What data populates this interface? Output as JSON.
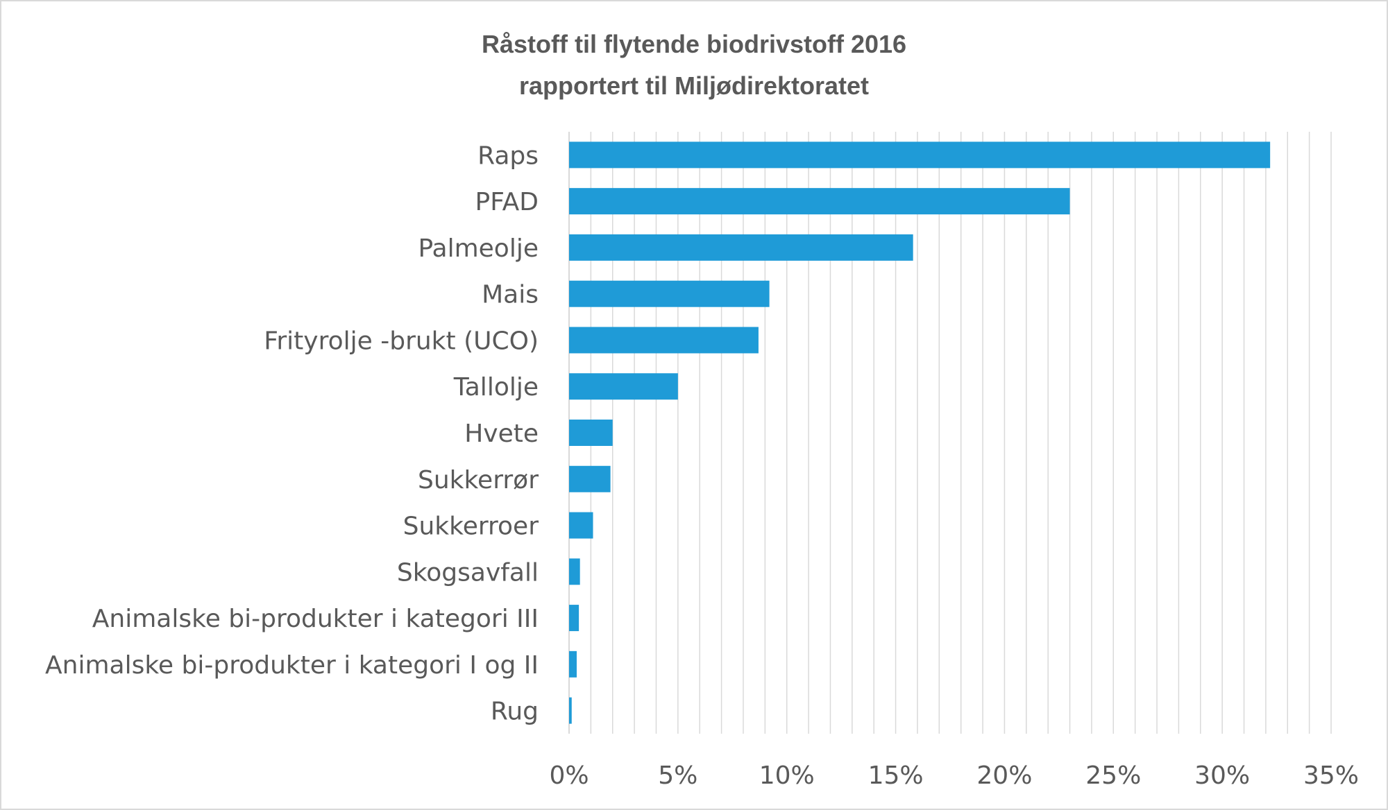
{
  "chart_data": {
    "type": "bar",
    "orientation": "horizontal",
    "title": [
      "Råstoff til flytende biodrivstoff 2016",
      "rapportert til Miljødirektoratet"
    ],
    "categories": [
      "Raps",
      "PFAD",
      "Palmeolje",
      "Mais",
      "Frityrolje -brukt (UCO)",
      "Tallolje",
      "Hvete",
      "Sukkerrør",
      "Sukkerroer",
      "Skogsavfall",
      "Animalske bi-produkter i kategori III",
      "Animalske bi-produkter i kategori I og II",
      "Rug"
    ],
    "values": [
      32.2,
      23.0,
      15.8,
      9.2,
      8.7,
      5.0,
      2.0,
      1.9,
      1.1,
      0.5,
      0.45,
      0.35,
      0.12
    ],
    "value_unit": "%",
    "xlim": [
      0,
      35
    ],
    "x_ticks": [
      "0%",
      "5%",
      "10%",
      "15%",
      "20%",
      "25%",
      "30%",
      "35%"
    ],
    "xlabel": "",
    "ylabel": "",
    "grid": "vertical",
    "legend": "none",
    "bar_color": "#1f9bd7",
    "grid_color": "#d9d9d9",
    "label_color": "#595959"
  }
}
